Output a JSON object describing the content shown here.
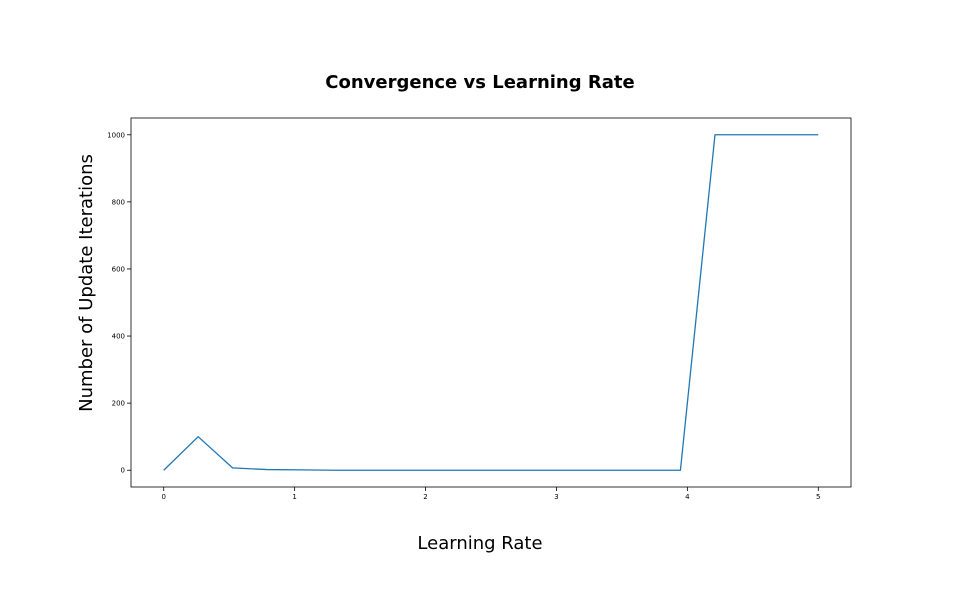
{
  "chart_data": {
    "type": "line",
    "title": "Convergence vs Learning Rate",
    "xlabel": "Learning Rate",
    "ylabel": "Number of Update Iterations",
    "xlim": [
      -0.25,
      5.25
    ],
    "ylim": [
      -50,
      1050
    ],
    "xticks": [
      0,
      1,
      2,
      3,
      4,
      5
    ],
    "yticks": [
      0,
      200,
      400,
      600,
      800,
      1000
    ],
    "grid": false,
    "legend": "none",
    "series": [
      {
        "color": "#1f77b4",
        "x": [
          0,
          0.263,
          0.526,
          0.789,
          1.053,
          1.316,
          1.579,
          1.842,
          2.105,
          2.368,
          2.632,
          2.895,
          3.158,
          3.421,
          3.684,
          3.947,
          4.211,
          4.474,
          4.737,
          5.0
        ],
        "y": [
          0,
          100,
          7,
          2,
          1,
          0,
          0,
          0,
          0,
          0,
          0,
          0,
          0,
          0,
          0,
          0,
          1000,
          1000,
          1000,
          1000
        ]
      }
    ]
  }
}
